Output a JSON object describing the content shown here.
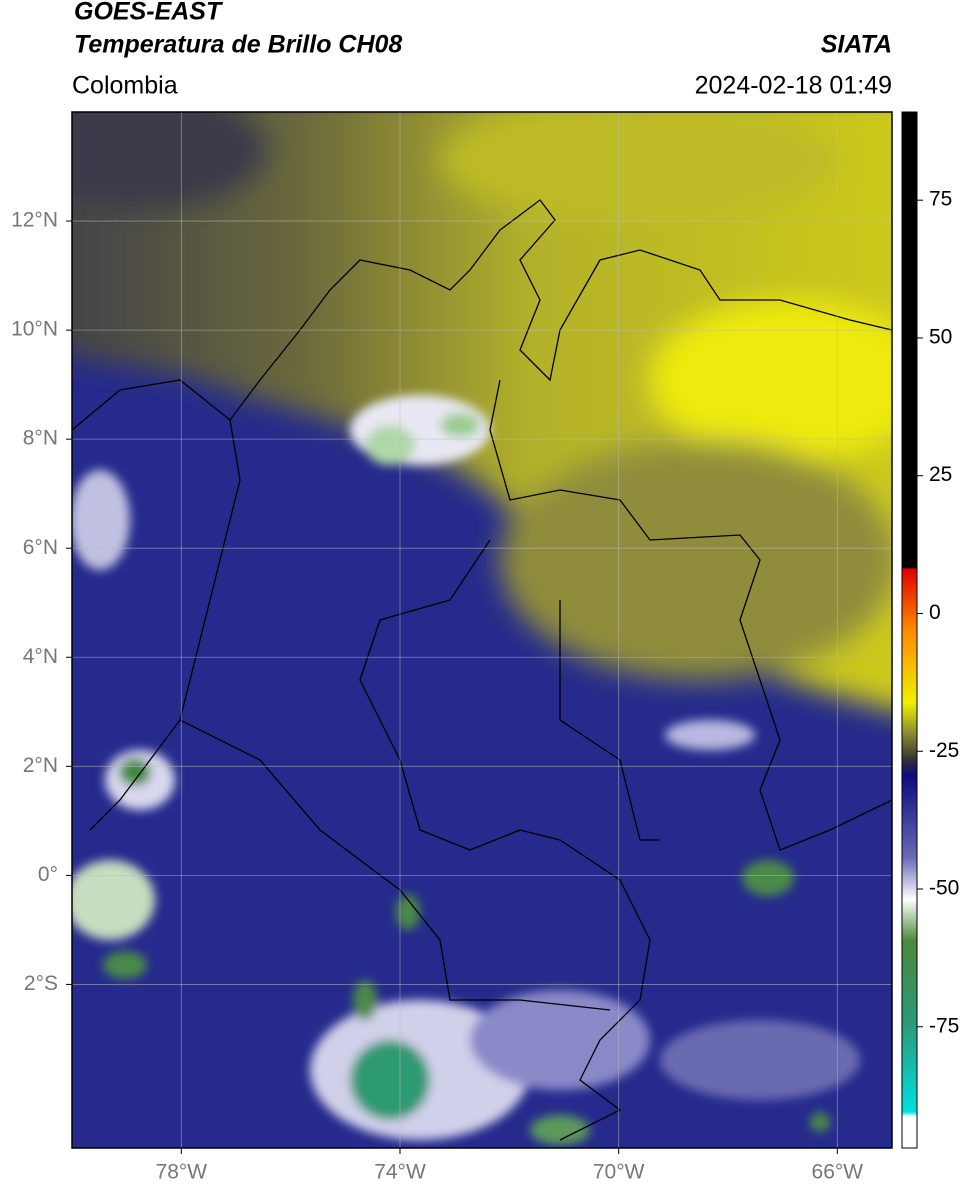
{
  "header": {
    "title": "GOES-EAST",
    "subtitle": "Temperatura de Brillo CH08",
    "region": "Colombia",
    "source": "SIATA",
    "datetime": "2024-02-18 01:49"
  },
  "map": {
    "xlim": [
      -80,
      -65
    ],
    "ylim": [
      -5,
      14
    ],
    "xticks": [
      {
        "value": -78,
        "label": "78°W"
      },
      {
        "value": -74,
        "label": "74°W"
      },
      {
        "value": -70,
        "label": "70°W"
      },
      {
        "value": -66,
        "label": "66°W"
      }
    ],
    "yticks": [
      {
        "value": 12,
        "label": "12°N"
      },
      {
        "value": 10,
        "label": "10°N"
      },
      {
        "value": 8,
        "label": "8°N"
      },
      {
        "value": 6,
        "label": "6°N"
      },
      {
        "value": 4,
        "label": "4°N"
      },
      {
        "value": 2,
        "label": "2°N"
      },
      {
        "value": 0,
        "label": "0°"
      },
      {
        "value": -2,
        "label": "2°S"
      }
    ],
    "grid": true
  },
  "colorbar": {
    "clim": [
      -97,
      91
    ],
    "ticks": [
      75,
      50,
      25,
      0,
      -25,
      -50,
      -75
    ]
  }
}
